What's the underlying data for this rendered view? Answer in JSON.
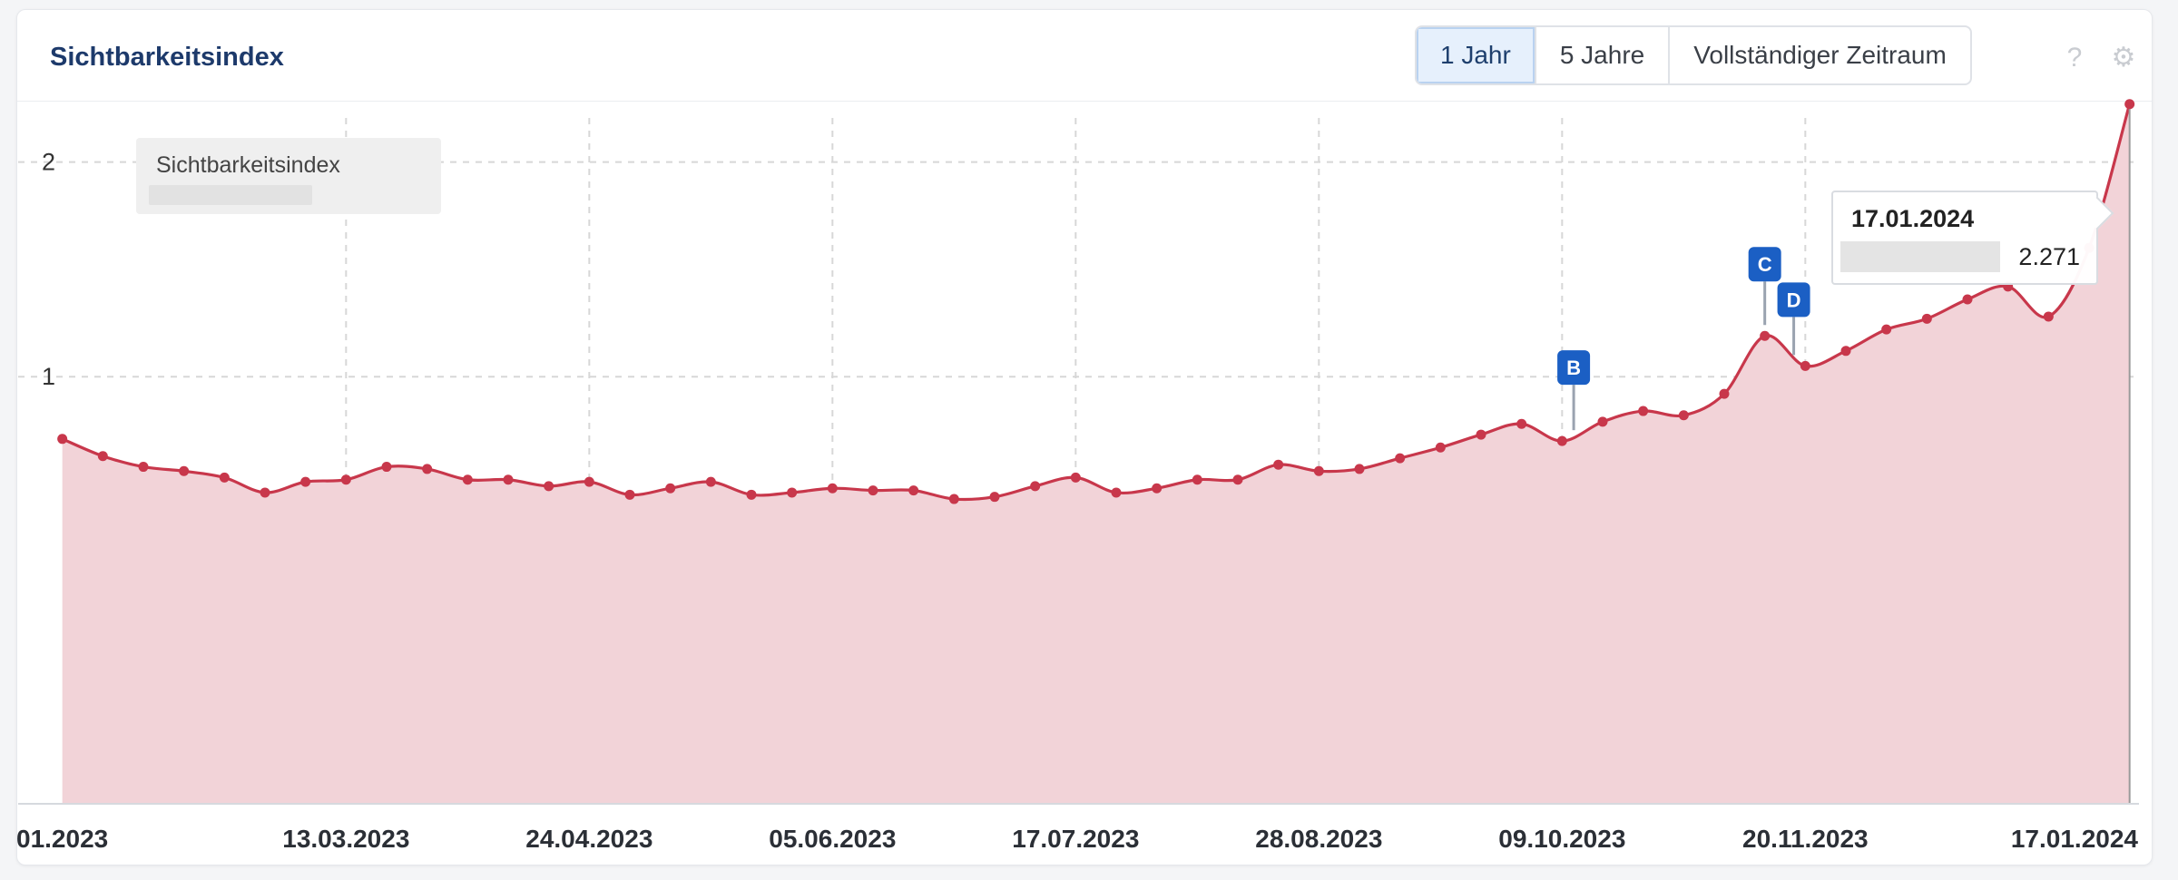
{
  "header": {
    "title": "Sichtbarkeitsindex",
    "range_buttons": [
      "1 Jahr",
      "5 Jahre",
      "Vollständiger Zeitraum"
    ],
    "active_range": "1 Jahr",
    "help_icon": "question-icon",
    "settings_icon": "gear-icon"
  },
  "legend": {
    "label": "Sichtbarkeitsindex"
  },
  "tooltip": {
    "date": "17.01.2024",
    "value": "2.271"
  },
  "colors": {
    "line": "#c8374b",
    "area": "#f2d3d8",
    "grid": "#d7d7d7",
    "marker": "#1b5fc4"
  },
  "chart_data": {
    "type": "area",
    "title": "Sichtbarkeitsindex",
    "x_tick_labels": [
      "01.2023",
      "13.03.2023",
      "24.04.2023",
      "05.06.2023",
      "17.07.2023",
      "28.08.2023",
      "09.10.2023",
      "20.11.2023",
      "17.01.2024"
    ],
    "y_ticks": [
      1,
      2
    ],
    "ylim": [
      -0.99,
      2.29
    ],
    "grid": true,
    "legend": "top-left",
    "series": [
      {
        "name": "Sichtbarkeitsindex",
        "x": [
          "2023-01-23",
          "2023-01-30",
          "2023-02-06",
          "2023-02-13",
          "2023-02-20",
          "2023-02-27",
          "2023-03-06",
          "2023-03-13",
          "2023-03-20",
          "2023-03-27",
          "2023-04-03",
          "2023-04-10",
          "2023-04-17",
          "2023-04-24",
          "2023-05-01",
          "2023-05-08",
          "2023-05-15",
          "2023-05-22",
          "2023-05-29",
          "2023-06-05",
          "2023-06-12",
          "2023-06-19",
          "2023-06-26",
          "2023-07-03",
          "2023-07-10",
          "2023-07-17",
          "2023-07-24",
          "2023-07-31",
          "2023-08-07",
          "2023-08-14",
          "2023-08-21",
          "2023-08-28",
          "2023-09-04",
          "2023-09-11",
          "2023-09-18",
          "2023-09-25",
          "2023-10-02",
          "2023-10-09",
          "2023-10-16",
          "2023-10-23",
          "2023-10-30",
          "2023-11-06",
          "2023-11-13",
          "2023-11-20",
          "2023-11-27",
          "2023-12-04",
          "2023-12-11",
          "2023-12-18",
          "2023-12-25",
          "2024-01-01",
          "2024-01-08",
          "2024-01-15"
        ],
        "values": [
          0.71,
          0.63,
          0.58,
          0.56,
          0.53,
          0.46,
          0.51,
          0.52,
          0.58,
          0.57,
          0.52,
          0.52,
          0.49,
          0.51,
          0.45,
          0.48,
          0.51,
          0.45,
          0.46,
          0.48,
          0.47,
          0.47,
          0.43,
          0.44,
          0.49,
          0.53,
          0.46,
          0.48,
          0.52,
          0.52,
          0.59,
          0.56,
          0.57,
          0.62,
          0.67,
          0.73,
          0.78,
          0.7,
          0.79,
          0.84,
          0.82,
          0.92,
          1.19,
          1.05,
          1.12,
          1.22,
          1.27,
          1.36,
          1.42,
          1.28,
          1.6,
          2.27
        ]
      }
    ],
    "event_markers": [
      {
        "label": "B",
        "date": "2023-10-11"
      },
      {
        "label": "C",
        "date": "2023-11-13"
      },
      {
        "label": "D",
        "date": "2023-11-18"
      }
    ]
  }
}
